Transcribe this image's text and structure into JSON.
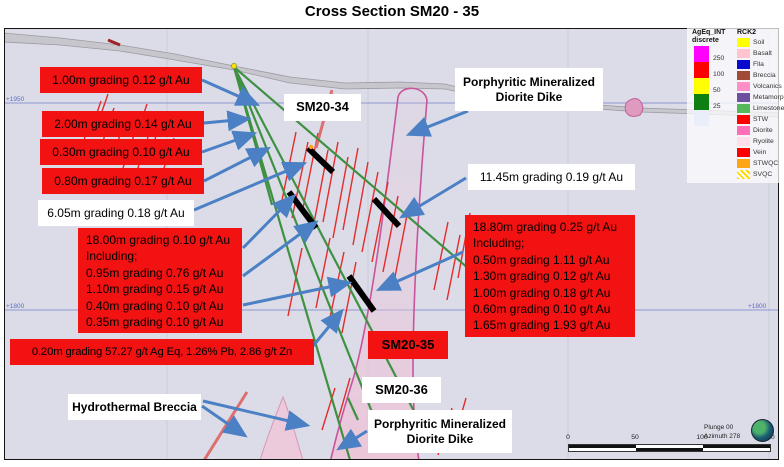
{
  "title": "Cross Section SM20 - 35",
  "boxes": {
    "i100": "1.00m grading 0.12 g/t Au",
    "i200": "2.00m grading 0.14 g/t Au",
    "i030": "0.30m grading 0.10 g/t Au",
    "i080": "0.80m grading 0.17 g/t Au",
    "i605": "6.05m grading 0.18 g/t Au",
    "i1800": [
      "18.00m grading 0.10 g/t Au",
      "Including;",
      "0.95m grading 0.76 g/t Au",
      "1.10m grading 0.15 g/t Au",
      "0.40m grading 0.10 g/t Au",
      "0.35m grading 0.10 g/t Au"
    ],
    "i020": "0.20m grading 57.27 g/t Ag Eq, 1.26% Pb, 2.86 g/t Zn",
    "i1145": "11.45m grading 0.19 g/t Au",
    "i1880": [
      "18.80m grading 0.25 g/t Au",
      "Including;",
      "0.50m grading 1.11 g/t Au",
      "1.30m grading 0.12 g/t Au",
      "1.00m grading 0.18 g/t Au",
      "0.60m grading 0.10 g/t Au",
      "1.65m grading 1.93 g/t Au"
    ],
    "sm2034": "SM20-34",
    "sm2035": "SM20-35",
    "sm2036": "SM20-36",
    "porphyritic_top": [
      "Porphyritic Mineralized",
      "Diorite Dike"
    ],
    "porphyritic_bottom": [
      "Porphyritic Mineralized",
      "Diorite Dike"
    ],
    "hydrothermal": "Hydrothermal Breccia"
  },
  "legend_ageq": {
    "header": [
      "AgEq_INT",
      "discrete"
    ],
    "entries": [
      {
        "color": "#FF00FF",
        "label": "250"
      },
      {
        "color": "#FE0000",
        "label": "100"
      },
      {
        "color": "#FFFF00",
        "label": "50"
      },
      {
        "color": "#0E8012",
        "label": "25"
      },
      {
        "color": "#EAEDFA",
        "label": ""
      }
    ]
  },
  "legend_rck2": {
    "header": "RCK2",
    "items": [
      {
        "label": "Soil",
        "color": "#FFFF00"
      },
      {
        "label": "Basalt",
        "color": "#FFC4CE"
      },
      {
        "label": "Flla",
        "color": "#0A0ACF"
      },
      {
        "label": "Breccia",
        "color": "#A14A38"
      },
      {
        "label": "Volcanics",
        "color": "#FF8FC6"
      },
      {
        "label": "Metamorphic",
        "color": "#6F4FA0"
      },
      {
        "label": "Limestone",
        "color": "#55B858"
      },
      {
        "label": "STW",
        "color": "#FE0000"
      },
      {
        "label": "Diorite",
        "color": "#FF6EB6"
      },
      {
        "label": "Ryolite",
        "color": "#FFDEEA"
      },
      {
        "label": "Vein",
        "color": "#FE0000"
      },
      {
        "label": "STWQC",
        "color": "#FFA414"
      },
      {
        "label": "SVQC",
        "color": "#FFE95C",
        "pattern": "checker"
      }
    ]
  },
  "scalebar": {
    "ticks": [
      "0",
      "50",
      "100",
      "150"
    ]
  },
  "view_info": {
    "plunge": "Plunge 00",
    "azimuth": "Azimuth 278"
  },
  "elevations": {
    "left_top": "+1950",
    "left_bottom": "+1800",
    "right_bottom": "+1800"
  },
  "colors": {
    "arrow": "#4B80C4",
    "intercept_box_red": "#F21212",
    "trace_green": "#3E9142",
    "vein_red": "#E52B2B",
    "dike_pink": "#C9549C"
  }
}
